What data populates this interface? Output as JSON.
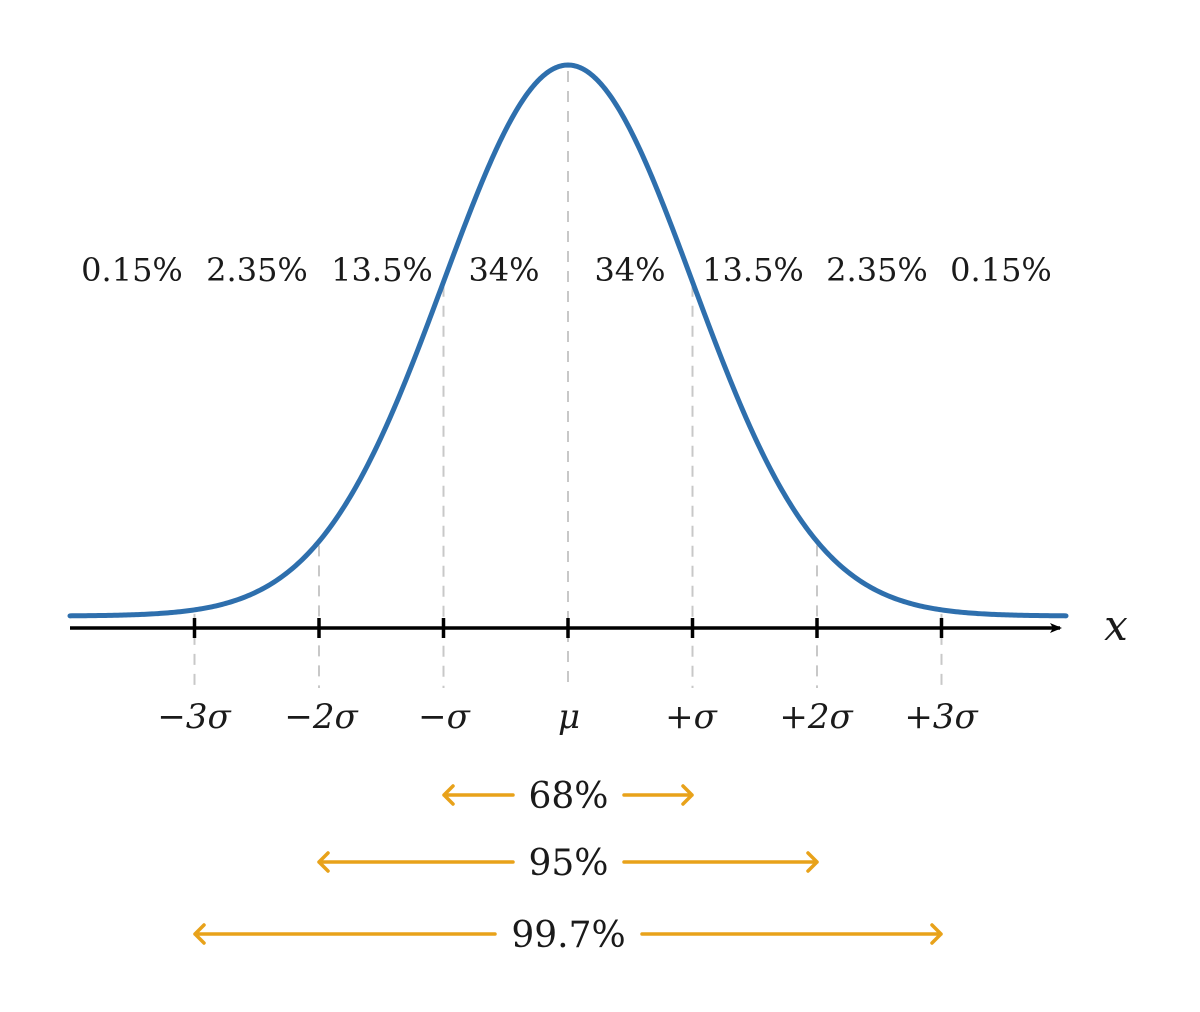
{
  "colors": {
    "curve": "#2e6fad",
    "axis": "#000000",
    "gridline": "#c8c8c8",
    "range_arrow": "#e8a21a",
    "text": "#1a1a1a"
  },
  "diagram": {
    "type": "normal-distribution",
    "axis_label": "x",
    "sigma_ticks": [
      -3,
      -2,
      -1,
      0,
      1,
      2,
      3
    ],
    "tick_labels": [
      "−3σ",
      "−2σ",
      "−σ",
      "μ",
      "+σ",
      "+2σ",
      "+3σ"
    ],
    "region_percentages": [
      "0.15%",
      "2.35%",
      "13.5%",
      "34%",
      "34%",
      "13.5%",
      "2.35%",
      "0.15%"
    ],
    "ranges": [
      {
        "label": "68%",
        "from_sigma": -1,
        "to_sigma": 1
      },
      {
        "label": "95%",
        "from_sigma": -2,
        "to_sigma": 2
      },
      {
        "label": "99.7%",
        "from_sigma": -3,
        "to_sigma": 3
      }
    ]
  }
}
